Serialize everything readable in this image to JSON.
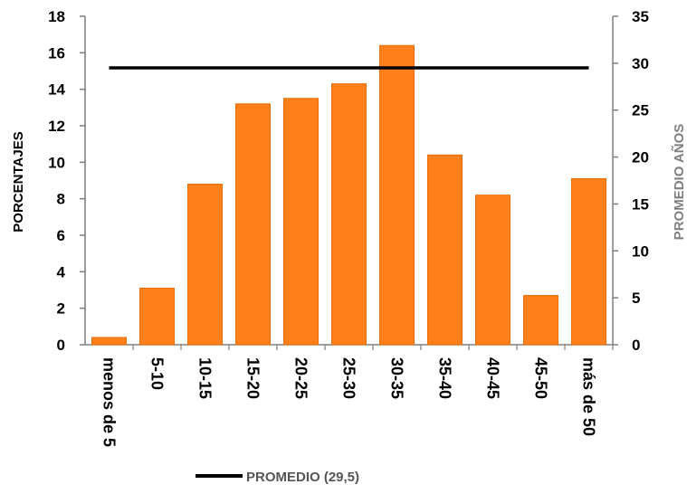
{
  "chart_data": {
    "type": "bar",
    "categories": [
      "menos de 5",
      "5-10",
      "10-15",
      "15-20",
      "20-25",
      "25-30",
      "30-35",
      "35-40",
      "40-45",
      "45-50",
      "más de 50"
    ],
    "series": [
      {
        "values": [
          0.4,
          3.1,
          8.8,
          13.2,
          13.5,
          14.3,
          16.4,
          10.4,
          8.2,
          2.7,
          9.1
        ],
        "axis": "left"
      }
    ],
    "reference_line": {
      "label": "PROMEDIO (29,5)",
      "value": 29.5,
      "axis": "right"
    },
    "ylabel": "PORCENTAJES",
    "ylim": [
      0,
      18
    ],
    "yticks": [
      0,
      2,
      4,
      6,
      8,
      10,
      12,
      14,
      16,
      18
    ],
    "y2label": "PROMEDIO AÑOS",
    "y2lim": [
      0,
      35
    ],
    "y2ticks": [
      0,
      5,
      10,
      15,
      20,
      25,
      30,
      35
    ],
    "grid": false,
    "legend_position": "bottom",
    "colors": {
      "bar": "#FF7F1A",
      "line": "#000000",
      "y2label": "#7F7F7F",
      "axis": "#7F7F7F"
    }
  }
}
